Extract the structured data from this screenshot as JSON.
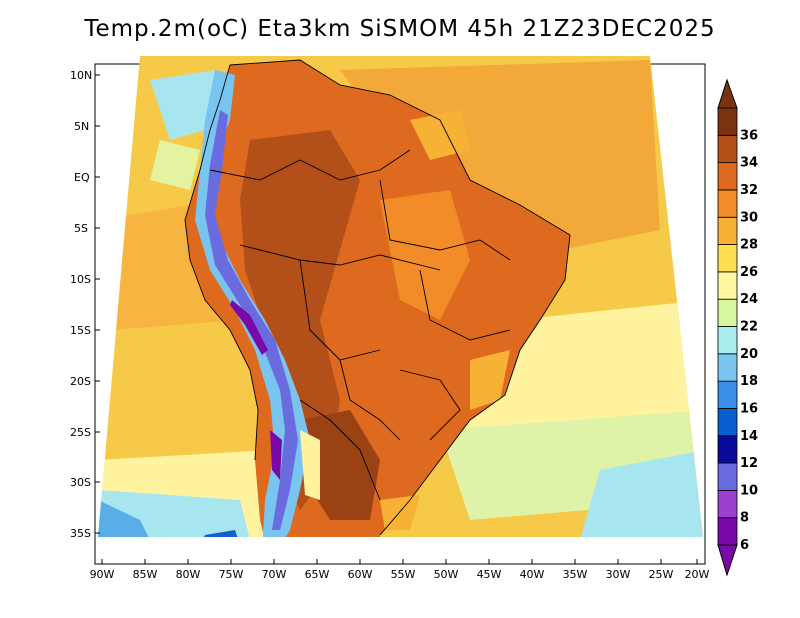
{
  "title": "Temp.2m(oC) Eta3km SiSMOM 45h 21Z23DEC2025",
  "map": {
    "lat_labels": [
      "10N",
      "5N",
      "EQ",
      "5S",
      "10S",
      "15S",
      "20S",
      "25S",
      "30S",
      "35S"
    ],
    "lon_labels": [
      "90W",
      "85W",
      "80W",
      "75W",
      "70W",
      "65W",
      "60W",
      "55W",
      "50W",
      "45W",
      "40W",
      "35W",
      "30W",
      "25W",
      "20W"
    ],
    "ocean_color": "#f5c842"
  },
  "colorbar": {
    "labels": [
      "6",
      "8",
      "10",
      "12",
      "14",
      "16",
      "18",
      "20",
      "22",
      "24",
      "26",
      "28",
      "30",
      "32",
      "34",
      "36"
    ],
    "colors": [
      "#7a0aa8",
      "#9b3fd0",
      "#6b6be0",
      "#0a0a9a",
      "#0a5ed0",
      "#3a8ee8",
      "#7ac4f0",
      "#aaeef0",
      "#d8f5a0",
      "#fff7a0",
      "#fde050",
      "#f7b236",
      "#f18c28",
      "#de6a20",
      "#b3501a",
      "#7a3210"
    ]
  }
}
